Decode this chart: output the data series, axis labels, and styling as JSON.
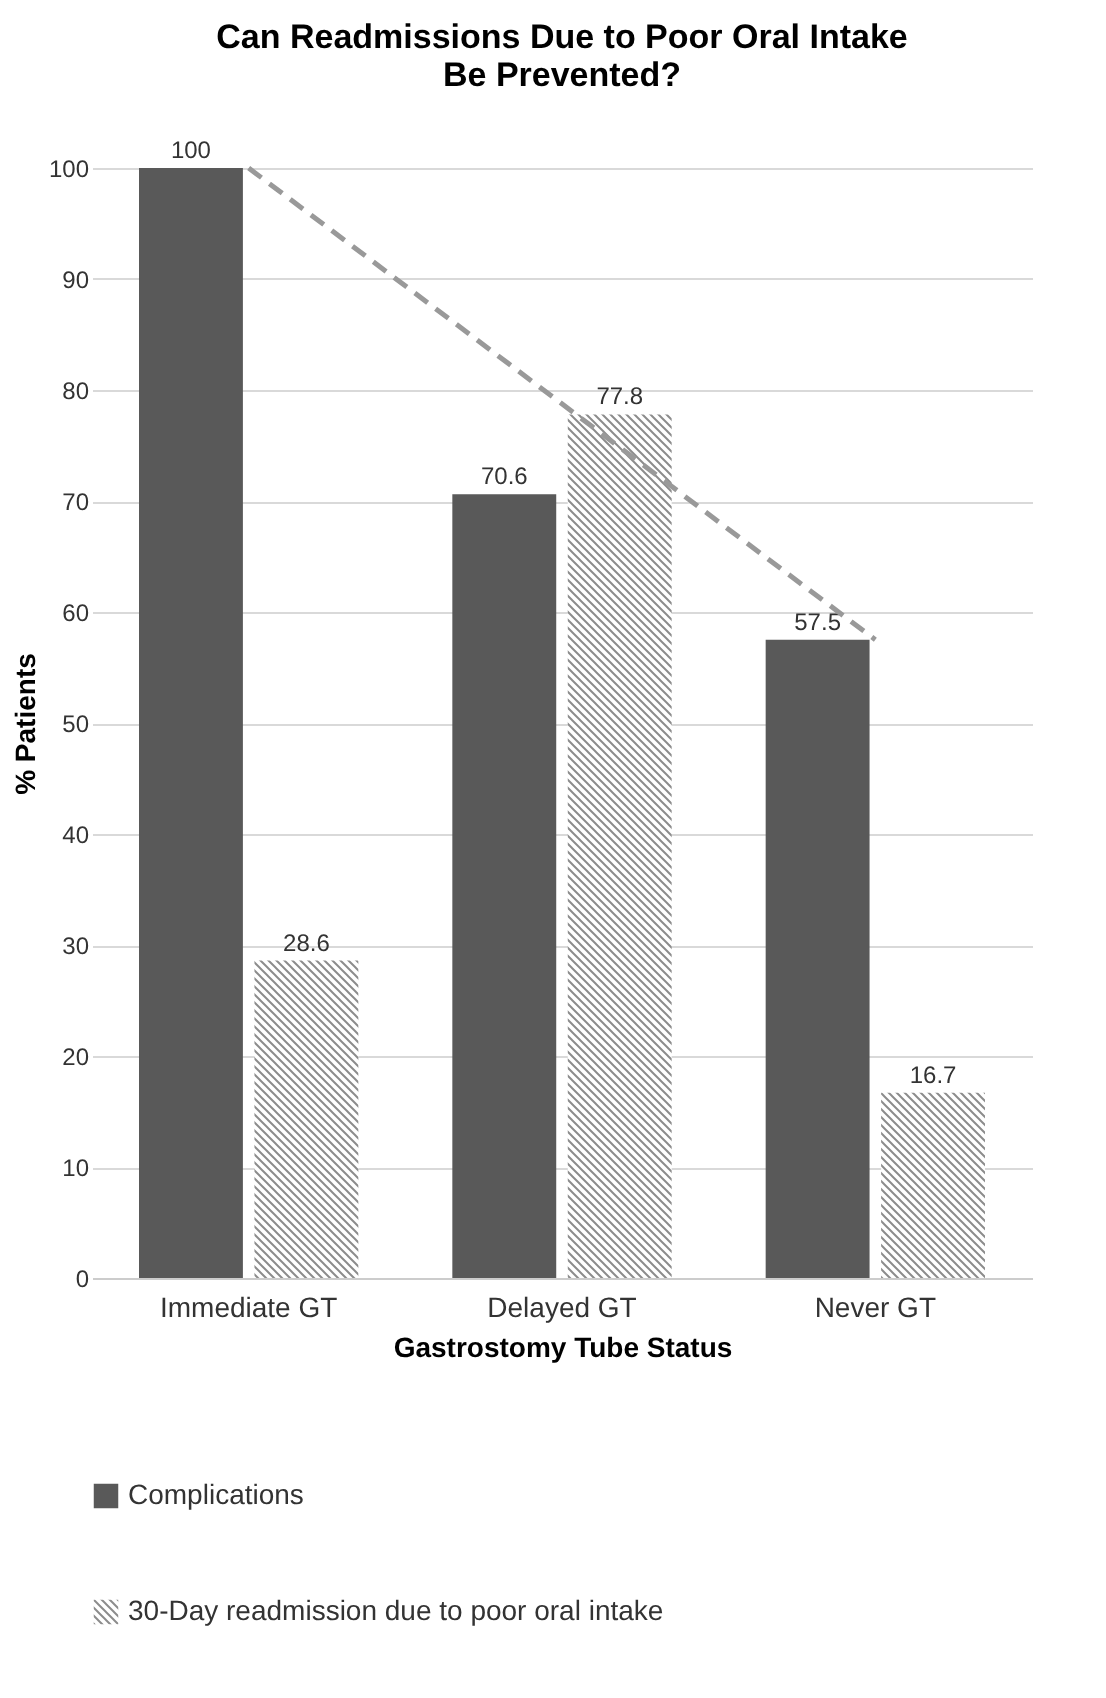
{
  "chart_data": {
    "type": "bar",
    "title": "Can Readmissions Due to Poor Oral Intake Be Prevented?",
    "xlabel": "Gastrostomy Tube Status",
    "ylabel": "% Patients",
    "categories": [
      "Immediate GT",
      "Delayed GT",
      "Never GT"
    ],
    "series": [
      {
        "name": "Complications",
        "color": "#595959",
        "values": [
          100,
          70.6,
          57.5
        ]
      },
      {
        "name": "30-Day readmission due to poor oral intake",
        "color": "#8c8c8c",
        "values": [
          28.6,
          77.8,
          16.7
        ]
      },
      {
        "type": "line",
        "color": "#999999",
        "line_style": "dashed",
        "x": [
          "Immediate GT",
          "Never GT"
        ],
        "values": [
          100,
          57.5
        ],
        "value_labels": [
          null,
          null
        ]
      }
    ],
    "ylim": [
      0,
      100
    ],
    "yticks": [
      0,
      10,
      20,
      30,
      40,
      50,
      60,
      70,
      80,
      90,
      100
    ],
    "grid": "y",
    "legend": "bottom",
    "data_labels": true
  }
}
